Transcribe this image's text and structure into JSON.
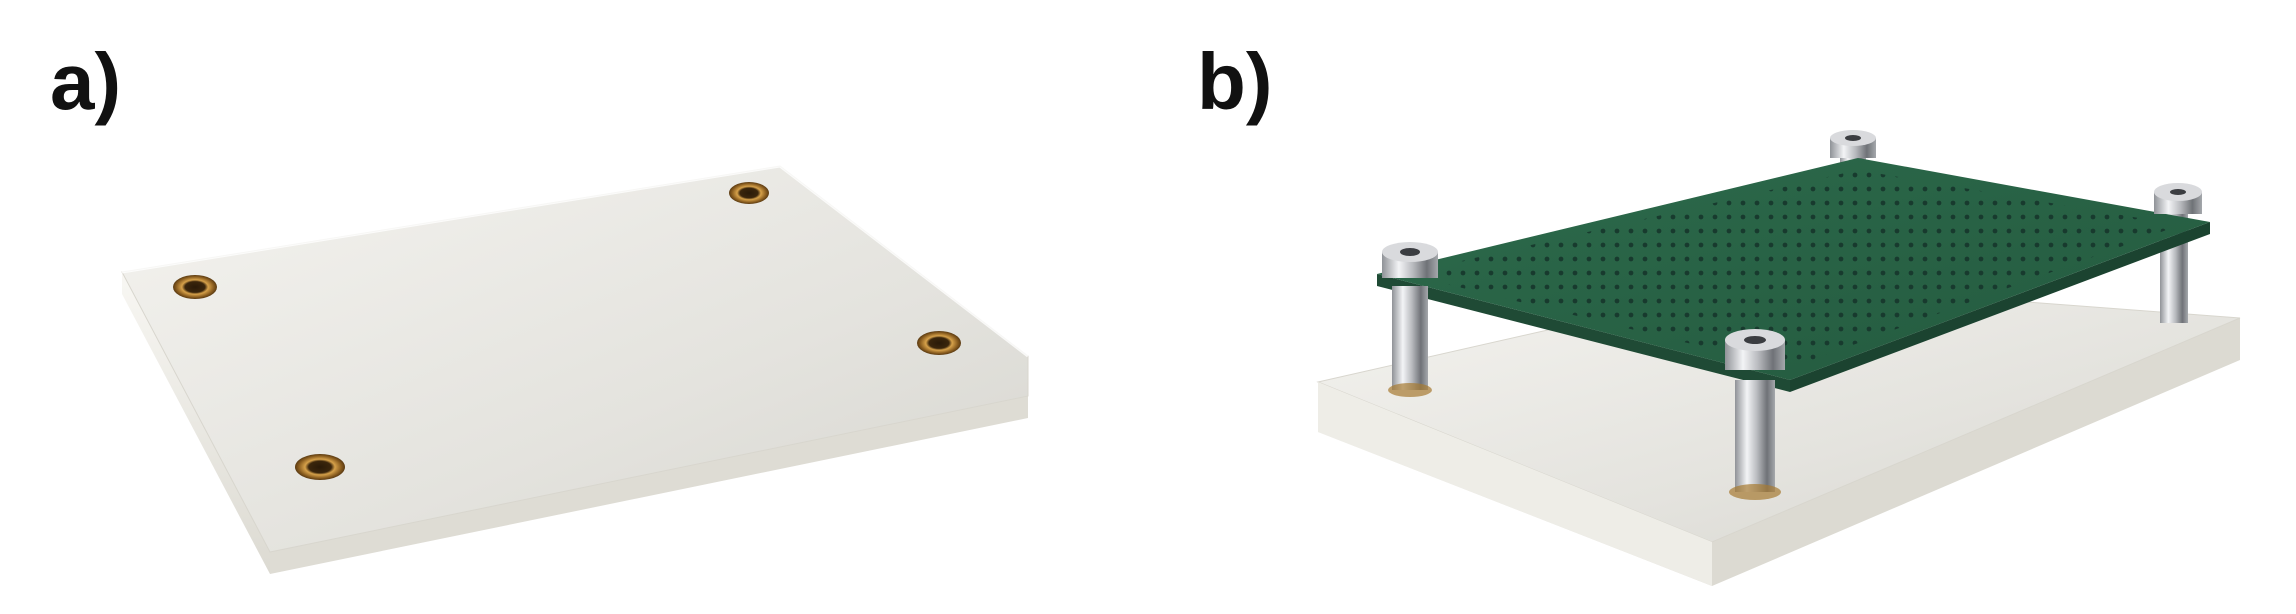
{
  "panels": [
    {
      "label": "a)"
    },
    {
      "label": "b)"
    }
  ],
  "colors": {
    "base_plate": "#f2f1ec",
    "base_plate_edge": "#e2e0d8",
    "pcb": "#2f6b4e",
    "pcb_hole": "#1c3a2b",
    "standoff": "#c8c9cc",
    "insert": "#b9862f"
  },
  "icons": {
    "panel_a": "base-plate-with-threaded-inserts",
    "panel_b": "pcb-mounted-on-standoffs"
  }
}
